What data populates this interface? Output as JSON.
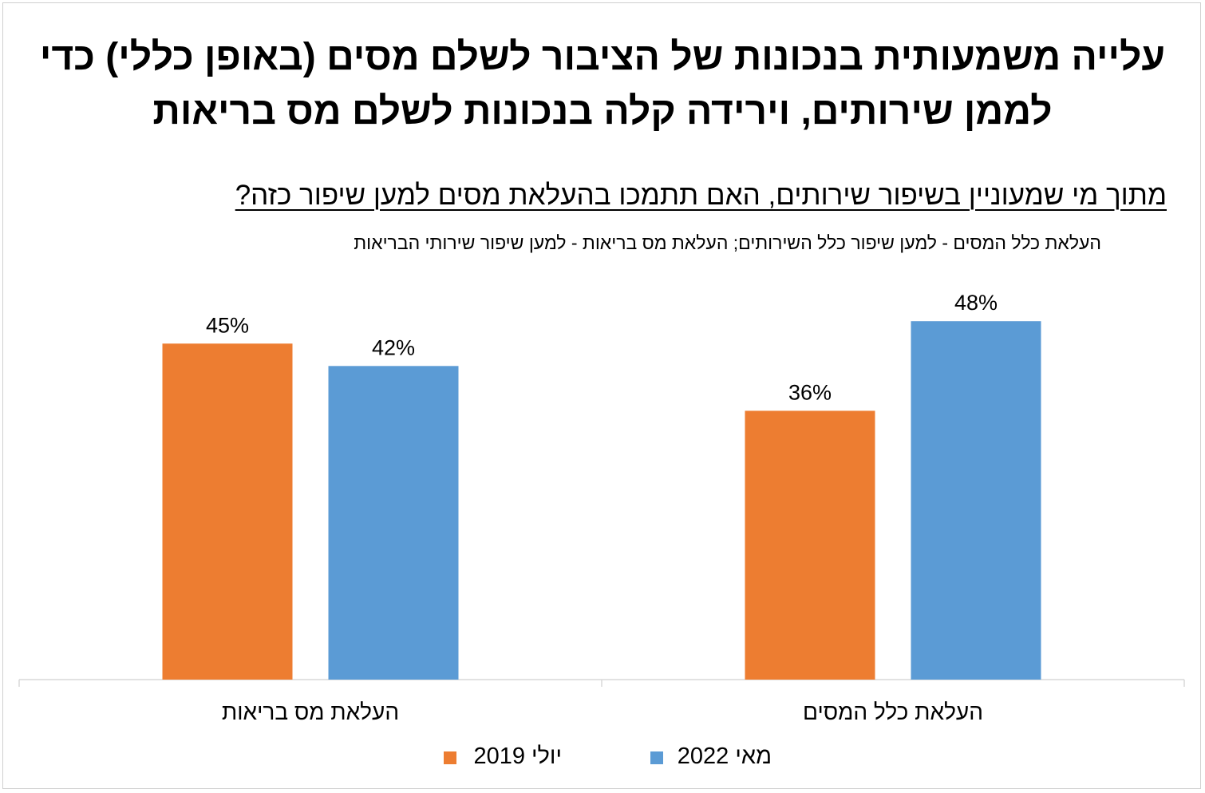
{
  "title": "עלייה משמעותית בנכונות של הציבור לשלם מסים (באופן כללי) כדי לממן שירותים, וירידה קלה בנכונות לשלם מס בריאות",
  "subtitle": "מתוך מי שמעוניין בשיפור שירותים, האם תתמכו בהעלאת מסים למען שיפור כזה?",
  "note": "העלאת כלל המסים - למען שיפור כלל השירותים; העלאת מס בריאות - למען שיפור שירותי הבריאות",
  "chart_data": {
    "type": "bar",
    "categories": [
      "העלאת כלל המסים",
      "העלאת מס בריאות"
    ],
    "series": [
      {
        "name": "יולי 2019",
        "values": [
          36,
          45
        ],
        "color": "#ED7D31"
      },
      {
        "name": "מאי 2022",
        "values": [
          48,
          42
        ],
        "color": "#5B9BD5"
      }
    ],
    "value_format": "percent",
    "data_labels": [
      "36%",
      "45%",
      "48%",
      "42%"
    ],
    "ylim": [
      0,
      60
    ],
    "grid": false,
    "legend_position": "bottom",
    "category_order": "right-to-left"
  }
}
